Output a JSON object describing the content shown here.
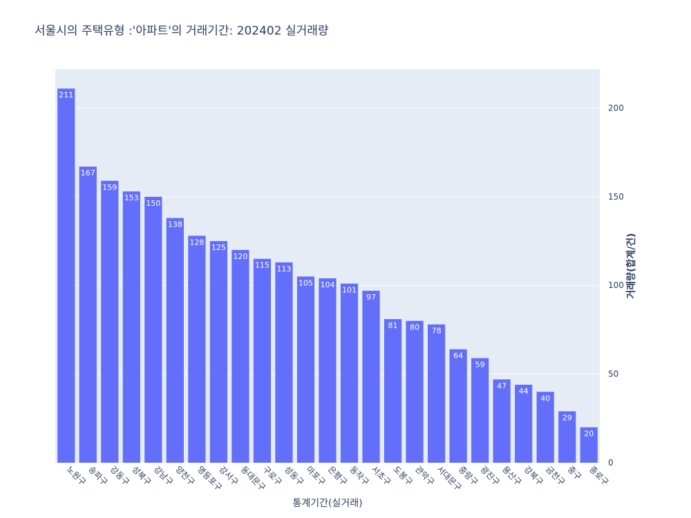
{
  "chart_data": {
    "type": "bar",
    "title": "서울시의 주택유형 :'아파트'의 거래기간: 202402 실거래량",
    "xlabel": "통계기간(실거래)",
    "ylabel": "거래량(합계/건)",
    "y_axis_side": "right",
    "ylim": [
      0,
      222
    ],
    "yticks": [
      0,
      50,
      100,
      150,
      200
    ],
    "grid": true,
    "bar_color": "#636efa",
    "plot_bg": "#e5ecf6",
    "categories": [
      "노원구",
      "송파구",
      "강동구",
      "성북구",
      "강남구",
      "양천구",
      "영등포구",
      "강서구",
      "동대문구",
      "구로구",
      "성동구",
      "마포구",
      "은평구",
      "동작구",
      "서초구",
      "도봉구",
      "관악구",
      "서대문구",
      "중랑구",
      "광진구",
      "용산구",
      "강북구",
      "금천구",
      "중구",
      "종로구"
    ],
    "values": [
      211,
      167,
      159,
      153,
      150,
      138,
      128,
      125,
      120,
      115,
      113,
      105,
      104,
      101,
      97,
      81,
      80,
      78,
      64,
      59,
      47,
      44,
      40,
      29,
      20
    ]
  }
}
